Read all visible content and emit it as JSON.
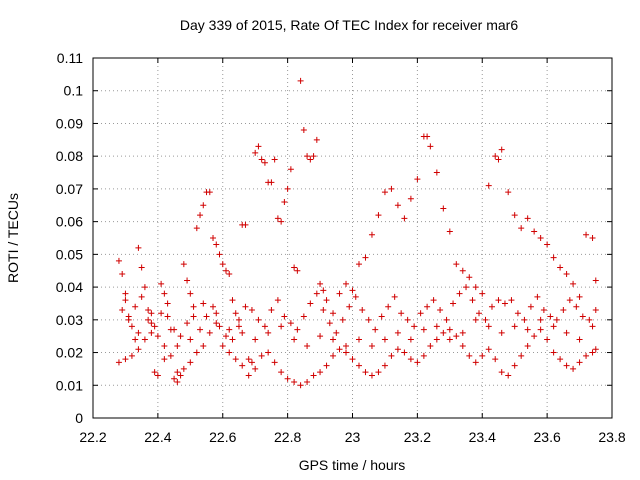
{
  "chart_data": {
    "type": "scatter",
    "title": "Day 339 of 2015, Rate Of TEC Index for receiver mar6",
    "xlabel": "GPS time / hours",
    "ylabel": "ROTI / TECUs",
    "xlim": [
      22.2,
      23.8
    ],
    "ylim": [
      0,
      0.11
    ],
    "x_ticks": [
      "22.2",
      "22.4",
      "22.6",
      "22.8",
      "23",
      "23.2",
      "23.4",
      "23.6",
      "23.8"
    ],
    "y_ticks": [
      "0",
      "0.01",
      "0.02",
      "0.03",
      "0.04",
      "0.05",
      "0.06",
      "0.07",
      "0.08",
      "0.09",
      "0.1",
      "0.11"
    ],
    "grid": true,
    "marker": "+",
    "color": "#d00000",
    "series": [
      {
        "points": [
          [
            22.28,
            0.048
          ],
          [
            22.29,
            0.044
          ],
          [
            22.3,
            0.036
          ],
          [
            22.31,
            0.031
          ],
          [
            22.32,
            0.028
          ],
          [
            22.33,
            0.024
          ],
          [
            22.34,
            0.052
          ],
          [
            22.35,
            0.046
          ],
          [
            22.36,
            0.04
          ],
          [
            22.37,
            0.033
          ],
          [
            22.38,
            0.029
          ],
          [
            22.39,
            0.014
          ],
          [
            22.4,
            0.013
          ],
          [
            22.41,
            0.041
          ],
          [
            22.42,
            0.038
          ],
          [
            22.43,
            0.031
          ],
          [
            22.44,
            0.027
          ],
          [
            22.45,
            0.012
          ],
          [
            22.46,
            0.011
          ],
          [
            22.47,
            0.013
          ],
          [
            22.48,
            0.047
          ],
          [
            22.49,
            0.042
          ],
          [
            22.5,
            0.038
          ],
          [
            22.51,
            0.034
          ],
          [
            22.52,
            0.058
          ],
          [
            22.53,
            0.062
          ],
          [
            22.54,
            0.065
          ],
          [
            22.55,
            0.069
          ],
          [
            22.56,
            0.069
          ],
          [
            22.57,
            0.055
          ],
          [
            22.58,
            0.053
          ],
          [
            22.59,
            0.05
          ],
          [
            22.6,
            0.047
          ],
          [
            22.61,
            0.045
          ],
          [
            22.62,
            0.044
          ],
          [
            22.63,
            0.036
          ],
          [
            22.64,
            0.032
          ],
          [
            22.65,
            0.028
          ],
          [
            22.66,
            0.059
          ],
          [
            22.67,
            0.059
          ],
          [
            22.68,
            0.018
          ],
          [
            22.69,
            0.017
          ],
          [
            22.7,
            0.081
          ],
          [
            22.71,
            0.083
          ],
          [
            22.72,
            0.079
          ],
          [
            22.73,
            0.078
          ],
          [
            22.74,
            0.072
          ],
          [
            22.75,
            0.072
          ],
          [
            22.76,
            0.079
          ],
          [
            22.77,
            0.061
          ],
          [
            22.78,
            0.06
          ],
          [
            22.79,
            0.066
          ],
          [
            22.8,
            0.07
          ],
          [
            22.81,
            0.076
          ],
          [
            22.82,
            0.046
          ],
          [
            22.83,
            0.045
          ],
          [
            22.84,
            0.103
          ],
          [
            22.85,
            0.088
          ],
          [
            22.86,
            0.08
          ],
          [
            22.87,
            0.079
          ],
          [
            22.88,
            0.08
          ],
          [
            22.89,
            0.085
          ],
          [
            22.9,
            0.041
          ],
          [
            22.91,
            0.039
          ],
          [
            22.28,
            0.017
          ],
          [
            22.3,
            0.018
          ],
          [
            22.32,
            0.019
          ],
          [
            22.34,
            0.021
          ],
          [
            22.36,
            0.024
          ],
          [
            22.38,
            0.026
          ],
          [
            22.4,
            0.025
          ],
          [
            22.42,
            0.022
          ],
          [
            22.44,
            0.019
          ],
          [
            22.46,
            0.014
          ],
          [
            22.48,
            0.015
          ],
          [
            22.5,
            0.017
          ],
          [
            22.52,
            0.02
          ],
          [
            22.54,
            0.022
          ],
          [
            22.56,
            0.026
          ],
          [
            22.58,
            0.029
          ],
          [
            22.6,
            0.022
          ],
          [
            22.62,
            0.02
          ],
          [
            22.64,
            0.018
          ],
          [
            22.66,
            0.016
          ],
          [
            22.68,
            0.013
          ],
          [
            22.7,
            0.015
          ],
          [
            22.72,
            0.019
          ],
          [
            22.74,
            0.02
          ],
          [
            22.76,
            0.017
          ],
          [
            22.78,
            0.014
          ],
          [
            22.8,
            0.012
          ],
          [
            22.82,
            0.011
          ],
          [
            22.84,
            0.01
          ],
          [
            22.86,
            0.011
          ],
          [
            22.88,
            0.013
          ],
          [
            22.9,
            0.014
          ],
          [
            22.92,
            0.016
          ],
          [
            22.94,
            0.019
          ],
          [
            22.96,
            0.021
          ],
          [
            22.98,
            0.02
          ],
          [
            23.0,
            0.018
          ],
          [
            23.02,
            0.016
          ],
          [
            23.04,
            0.014
          ],
          [
            23.06,
            0.013
          ],
          [
            23.08,
            0.014
          ],
          [
            23.1,
            0.016
          ],
          [
            23.12,
            0.019
          ],
          [
            23.14,
            0.021
          ],
          [
            23.16,
            0.02
          ],
          [
            23.18,
            0.018
          ],
          [
            23.2,
            0.017
          ],
          [
            23.22,
            0.019
          ],
          [
            23.24,
            0.022
          ],
          [
            23.26,
            0.024
          ],
          [
            23.28,
            0.026
          ],
          [
            23.3,
            0.027
          ],
          [
            23.32,
            0.025
          ],
          [
            23.34,
            0.022
          ],
          [
            23.36,
            0.019
          ],
          [
            23.38,
            0.017
          ],
          [
            23.4,
            0.019
          ],
          [
            23.42,
            0.021
          ],
          [
            23.44,
            0.018
          ],
          [
            23.46,
            0.014
          ],
          [
            23.48,
            0.013
          ],
          [
            23.5,
            0.016
          ],
          [
            23.52,
            0.019
          ],
          [
            23.54,
            0.022
          ],
          [
            23.56,
            0.025
          ],
          [
            23.58,
            0.027
          ],
          [
            23.6,
            0.024
          ],
          [
            23.62,
            0.02
          ],
          [
            23.64,
            0.018
          ],
          [
            23.66,
            0.016
          ],
          [
            23.68,
            0.015
          ],
          [
            23.7,
            0.017
          ],
          [
            23.72,
            0.019
          ],
          [
            23.74,
            0.02
          ],
          [
            23.75,
            0.021
          ],
          [
            22.29,
            0.033
          ],
          [
            22.31,
            0.03
          ],
          [
            22.33,
            0.034
          ],
          [
            22.35,
            0.037
          ],
          [
            22.37,
            0.03
          ],
          [
            22.39,
            0.028
          ],
          [
            22.41,
            0.032
          ],
          [
            22.43,
            0.035
          ],
          [
            22.45,
            0.027
          ],
          [
            22.47,
            0.025
          ],
          [
            22.49,
            0.029
          ],
          [
            22.51,
            0.031
          ],
          [
            22.53,
            0.027
          ],
          [
            22.55,
            0.031
          ],
          [
            22.57,
            0.034
          ],
          [
            22.59,
            0.028
          ],
          [
            22.61,
            0.025
          ],
          [
            22.63,
            0.024
          ],
          [
            22.65,
            0.03
          ],
          [
            22.67,
            0.034
          ],
          [
            22.69,
            0.033
          ],
          [
            22.71,
            0.03
          ],
          [
            22.73,
            0.028
          ],
          [
            22.75,
            0.033
          ],
          [
            22.77,
            0.036
          ],
          [
            22.79,
            0.031
          ],
          [
            22.81,
            0.029
          ],
          [
            22.83,
            0.027
          ],
          [
            22.85,
            0.031
          ],
          [
            22.87,
            0.035
          ],
          [
            22.89,
            0.038
          ],
          [
            22.91,
            0.033
          ],
          [
            22.93,
            0.029
          ],
          [
            22.95,
            0.026
          ],
          [
            22.97,
            0.03
          ],
          [
            22.99,
            0.034
          ],
          [
            23.01,
            0.037
          ],
          [
            23.03,
            0.033
          ],
          [
            23.05,
            0.03
          ],
          [
            23.07,
            0.027
          ],
          [
            23.09,
            0.031
          ],
          [
            23.11,
            0.034
          ],
          [
            23.13,
            0.037
          ],
          [
            23.15,
            0.032
          ],
          [
            23.17,
            0.03
          ],
          [
            23.19,
            0.028
          ],
          [
            23.21,
            0.032
          ],
          [
            23.23,
            0.034
          ],
          [
            23.25,
            0.036
          ],
          [
            23.27,
            0.033
          ],
          [
            23.29,
            0.03
          ],
          [
            23.31,
            0.035
          ],
          [
            23.33,
            0.038
          ],
          [
            23.35,
            0.04
          ],
          [
            23.37,
            0.036
          ],
          [
            23.39,
            0.032
          ],
          [
            23.41,
            0.03
          ],
          [
            23.43,
            0.034
          ],
          [
            23.45,
            0.036
          ],
          [
            23.47,
            0.035
          ],
          [
            23.49,
            0.036
          ],
          [
            23.51,
            0.032
          ],
          [
            23.53,
            0.03
          ],
          [
            23.55,
            0.034
          ],
          [
            23.57,
            0.037
          ],
          [
            23.59,
            0.033
          ],
          [
            23.61,
            0.031
          ],
          [
            23.63,
            0.03
          ],
          [
            23.65,
            0.033
          ],
          [
            23.67,
            0.036
          ],
          [
            23.69,
            0.034
          ],
          [
            23.71,
            0.031
          ],
          [
            23.73,
            0.03
          ],
          [
            23.75,
            0.033
          ],
          [
            22.92,
            0.036
          ],
          [
            22.94,
            0.032
          ],
          [
            22.96,
            0.038
          ],
          [
            22.98,
            0.041
          ],
          [
            23.0,
            0.039
          ],
          [
            23.02,
            0.047
          ],
          [
            23.04,
            0.049
          ],
          [
            23.06,
            0.056
          ],
          [
            23.08,
            0.062
          ],
          [
            23.1,
            0.069
          ],
          [
            23.12,
            0.07
          ],
          [
            23.14,
            0.065
          ],
          [
            23.16,
            0.061
          ],
          [
            23.18,
            0.067
          ],
          [
            23.2,
            0.073
          ],
          [
            23.22,
            0.086
          ],
          [
            23.23,
            0.086
          ],
          [
            23.24,
            0.083
          ],
          [
            23.26,
            0.075
          ],
          [
            23.28,
            0.064
          ],
          [
            23.3,
            0.057
          ],
          [
            23.32,
            0.047
          ],
          [
            23.34,
            0.045
          ],
          [
            23.36,
            0.043
          ],
          [
            23.38,
            0.04
          ],
          [
            23.4,
            0.038
          ],
          [
            23.42,
            0.071
          ],
          [
            23.44,
            0.08
          ],
          [
            23.45,
            0.079
          ],
          [
            23.46,
            0.082
          ],
          [
            23.48,
            0.069
          ],
          [
            23.5,
            0.062
          ],
          [
            23.52,
            0.058
          ],
          [
            23.54,
            0.061
          ],
          [
            23.56,
            0.057
          ],
          [
            23.58,
            0.055
          ],
          [
            23.6,
            0.053
          ],
          [
            23.62,
            0.049
          ],
          [
            23.64,
            0.046
          ],
          [
            23.66,
            0.044
          ],
          [
            23.68,
            0.041
          ],
          [
            23.7,
            0.037
          ],
          [
            23.72,
            0.056
          ],
          [
            23.74,
            0.055
          ],
          [
            23.75,
            0.042
          ],
          [
            22.3,
            0.038
          ],
          [
            22.34,
            0.026
          ],
          [
            22.38,
            0.032
          ],
          [
            22.42,
            0.018
          ],
          [
            22.46,
            0.022
          ],
          [
            22.5,
            0.024
          ],
          [
            22.54,
            0.035
          ],
          [
            22.58,
            0.032
          ],
          [
            22.62,
            0.027
          ],
          [
            22.66,
            0.026
          ],
          [
            22.7,
            0.024
          ],
          [
            22.74,
            0.026
          ],
          [
            22.78,
            0.028
          ],
          [
            22.82,
            0.024
          ],
          [
            22.86,
            0.022
          ],
          [
            22.9,
            0.025
          ],
          [
            22.94,
            0.024
          ],
          [
            22.98,
            0.022
          ],
          [
            23.02,
            0.024
          ],
          [
            23.06,
            0.022
          ],
          [
            23.1,
            0.024
          ],
          [
            23.14,
            0.026
          ],
          [
            23.18,
            0.024
          ],
          [
            23.22,
            0.027
          ],
          [
            23.26,
            0.028
          ],
          [
            23.3,
            0.024
          ],
          [
            23.34,
            0.026
          ],
          [
            23.38,
            0.03
          ],
          [
            23.42,
            0.028
          ],
          [
            23.46,
            0.026
          ],
          [
            23.5,
            0.028
          ],
          [
            23.54,
            0.027
          ],
          [
            23.58,
            0.03
          ],
          [
            23.62,
            0.028
          ],
          [
            23.66,
            0.026
          ],
          [
            23.7,
            0.024
          ],
          [
            23.74,
            0.028
          ]
        ]
      }
    ]
  }
}
